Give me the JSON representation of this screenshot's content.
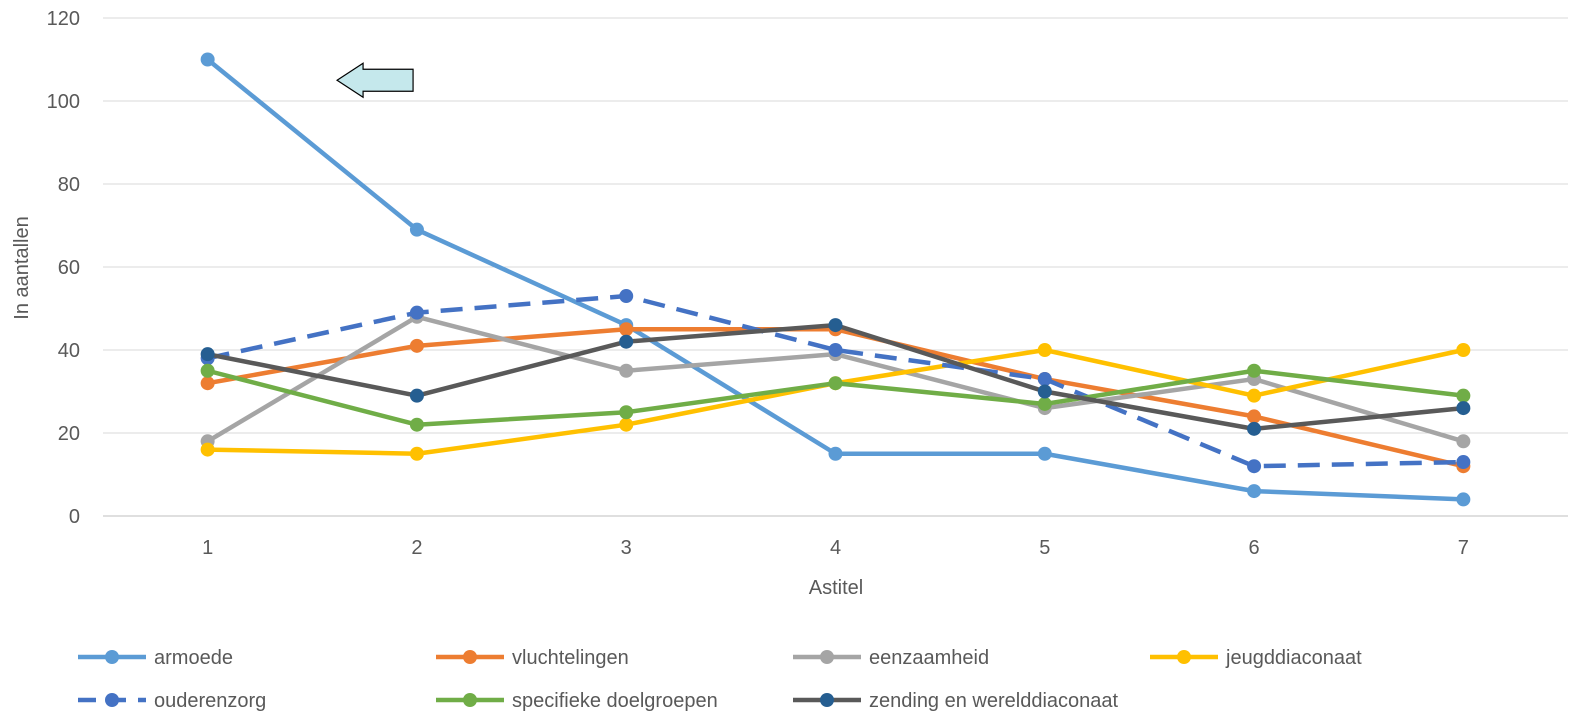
{
  "chart_data": {
    "type": "line",
    "title": "",
    "xlabel": "Astitel",
    "ylabel": "In aantallen",
    "x": [
      1,
      2,
      3,
      4,
      5,
      6,
      7
    ],
    "ylim": [
      0,
      120
    ],
    "yticks": [
      0,
      20,
      40,
      60,
      80,
      100,
      120
    ],
    "grid": true,
    "legend_position": "bottom",
    "series": [
      {
        "name": "armoede",
        "color": "#5B9BD5",
        "dashed": false,
        "values": [
          110,
          69,
          46,
          15,
          15,
          6,
          4
        ]
      },
      {
        "name": "vluchtelingen",
        "color": "#ED7D31",
        "dashed": false,
        "values": [
          32,
          41,
          45,
          45,
          33,
          24,
          12
        ]
      },
      {
        "name": "eenzaamheid",
        "color": "#A5A5A5",
        "dashed": false,
        "values": [
          18,
          48,
          35,
          39,
          26,
          33,
          18
        ]
      },
      {
        "name": "jeugddiaconaat",
        "color": "#FFC000",
        "dashed": false,
        "values": [
          16,
          15,
          22,
          32,
          40,
          29,
          40
        ]
      },
      {
        "name": "ouderenzorg",
        "color": "#4472C4",
        "dashed": true,
        "values": [
          38,
          49,
          53,
          40,
          33,
          12,
          13
        ]
      },
      {
        "name": "specifieke doelgroepen",
        "color": "#70AD47",
        "dashed": false,
        "values": [
          35,
          22,
          25,
          32,
          27,
          35,
          29
        ]
      },
      {
        "name": "zending en werelddiaconaat",
        "color": "#255E91",
        "line_color": "#595959",
        "dashed": false,
        "values": [
          39,
          29,
          42,
          46,
          30,
          21,
          26
        ]
      }
    ],
    "annotations": [
      {
        "type": "arrow",
        "direction": "left",
        "fill": "#C5E8EC",
        "x": 1.8,
        "y": 105
      }
    ]
  }
}
